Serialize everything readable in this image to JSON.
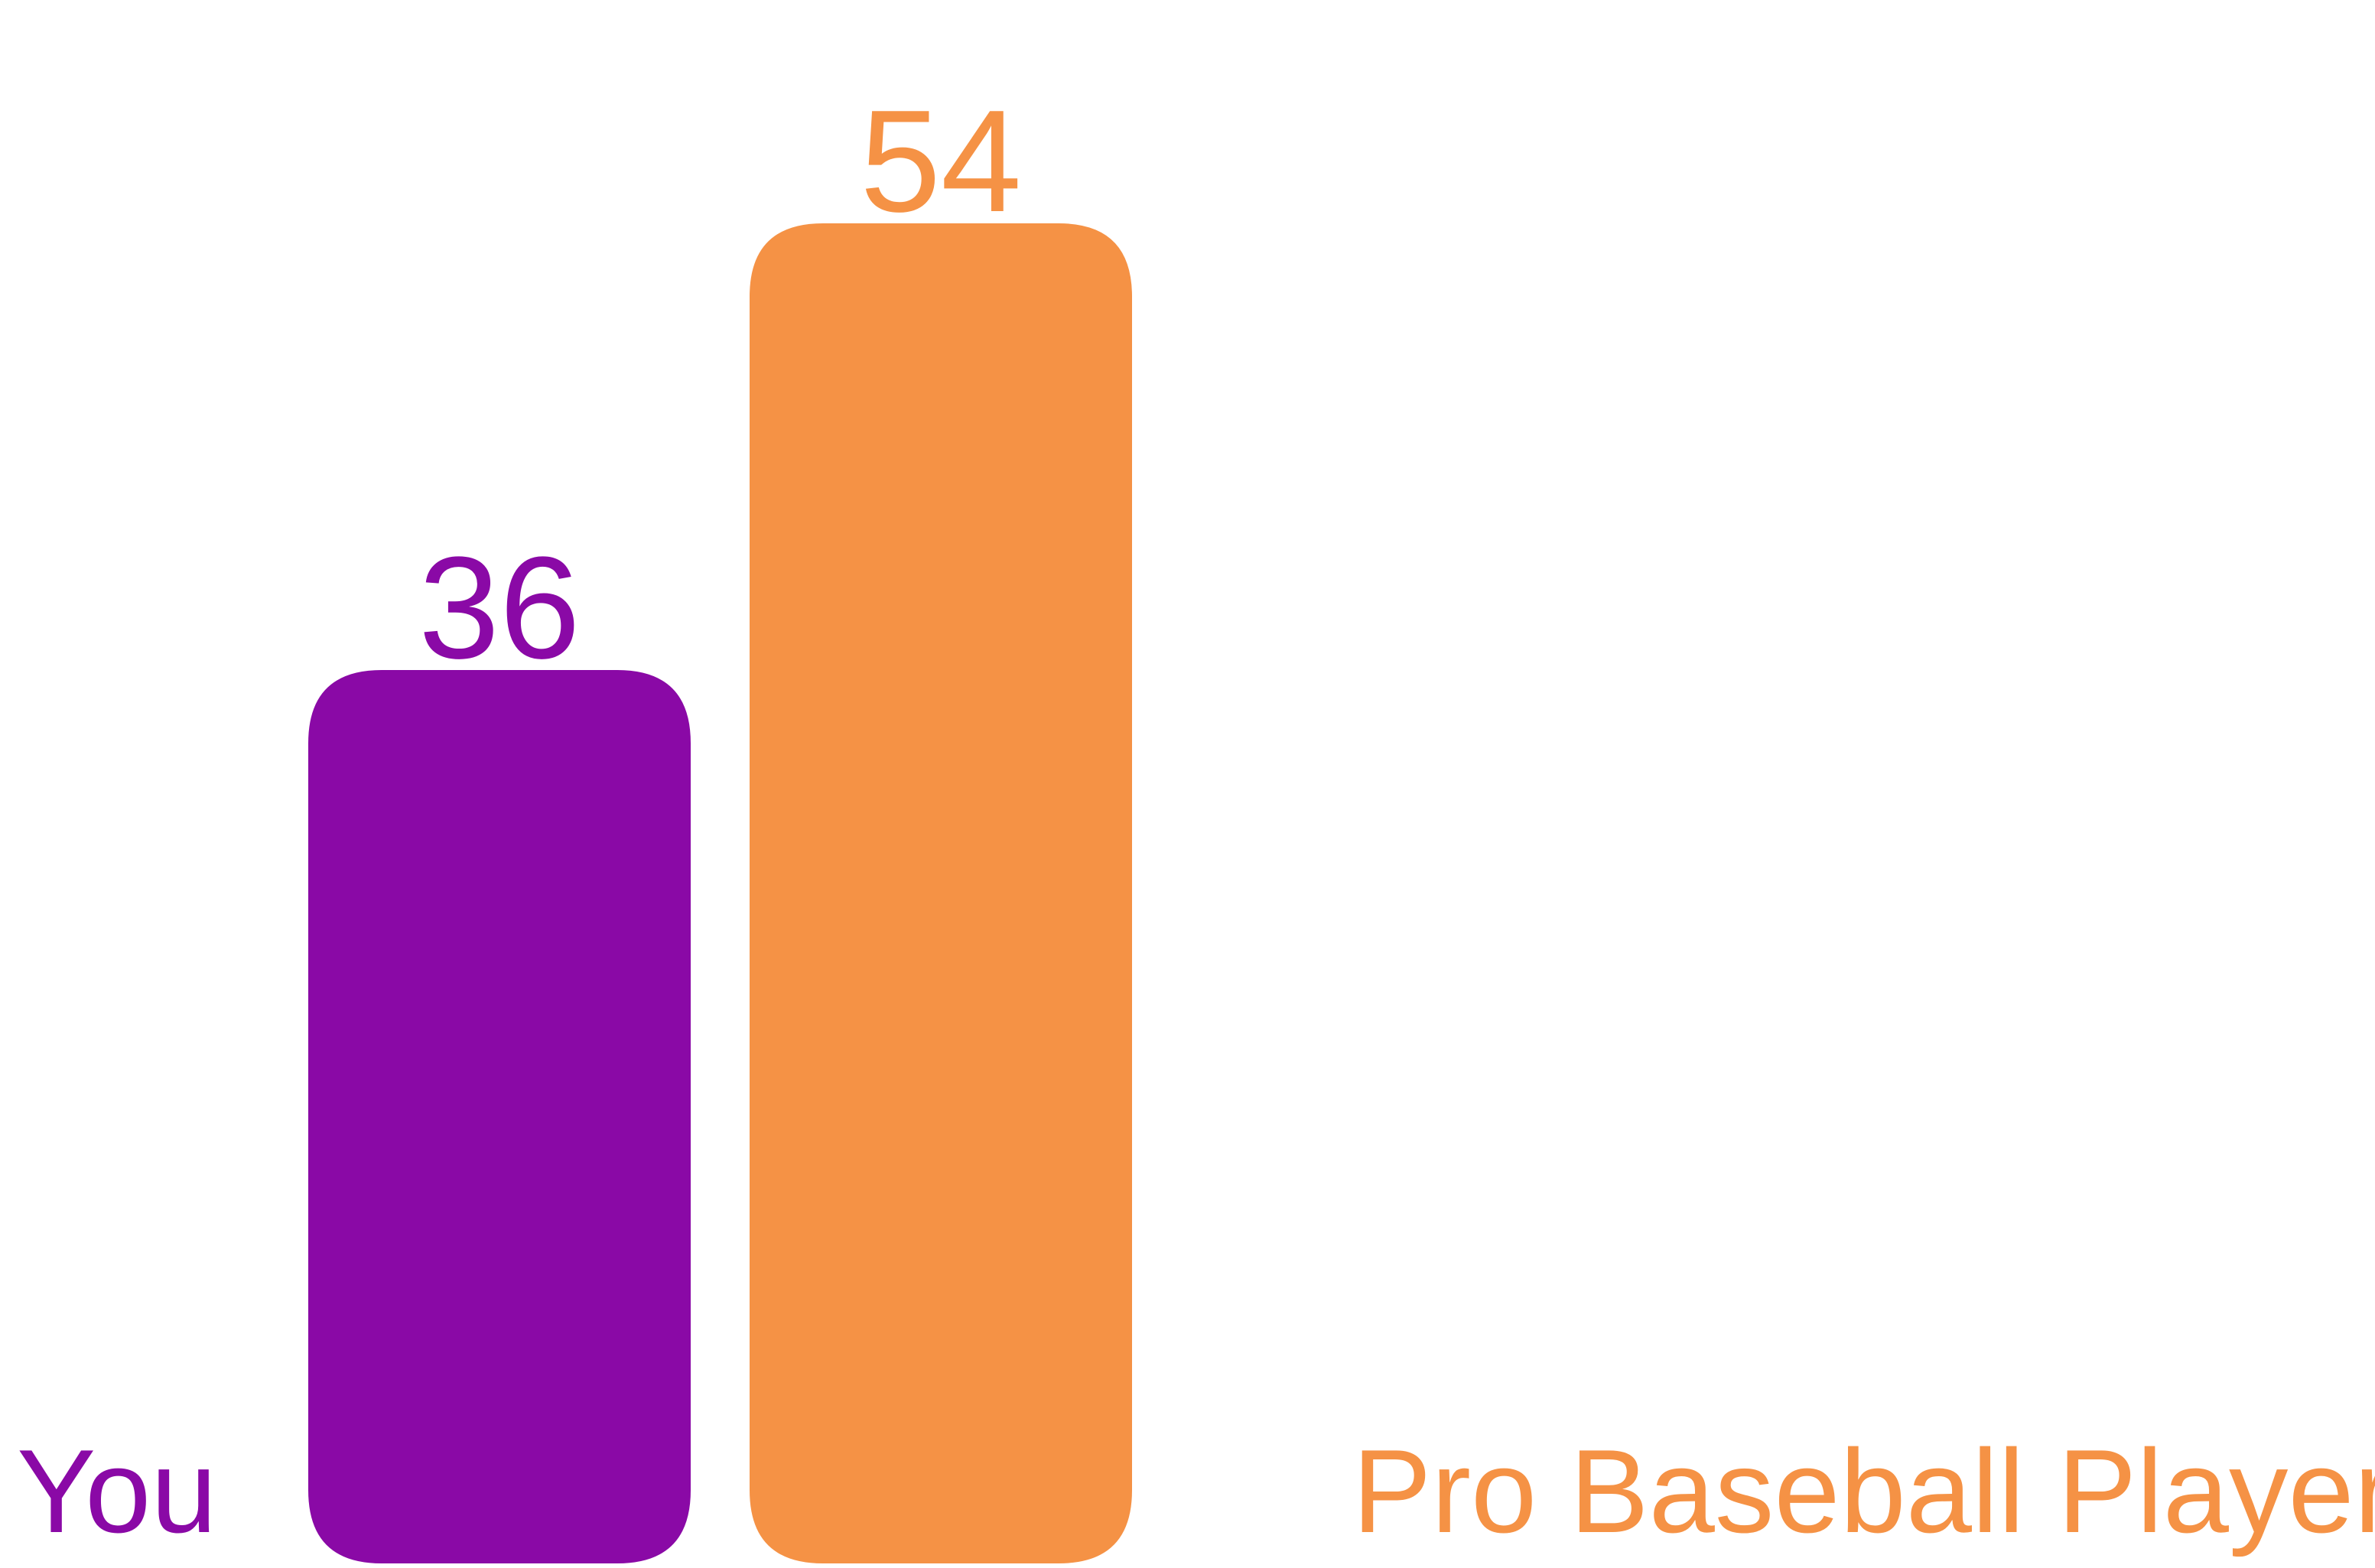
{
  "chart_data": {
    "type": "bar",
    "categories": [
      "You",
      "Pro Baseball Player"
    ],
    "values": [
      36,
      54
    ],
    "colors": [
      "#8a09a6",
      "#f59245"
    ],
    "title": "",
    "xlabel": "",
    "ylabel": "",
    "ylim": [
      0,
      63
    ],
    "grid": false,
    "legend": "bottom"
  },
  "legend": {
    "you_label": "You",
    "pro_label": "Pro Baseball Player"
  }
}
